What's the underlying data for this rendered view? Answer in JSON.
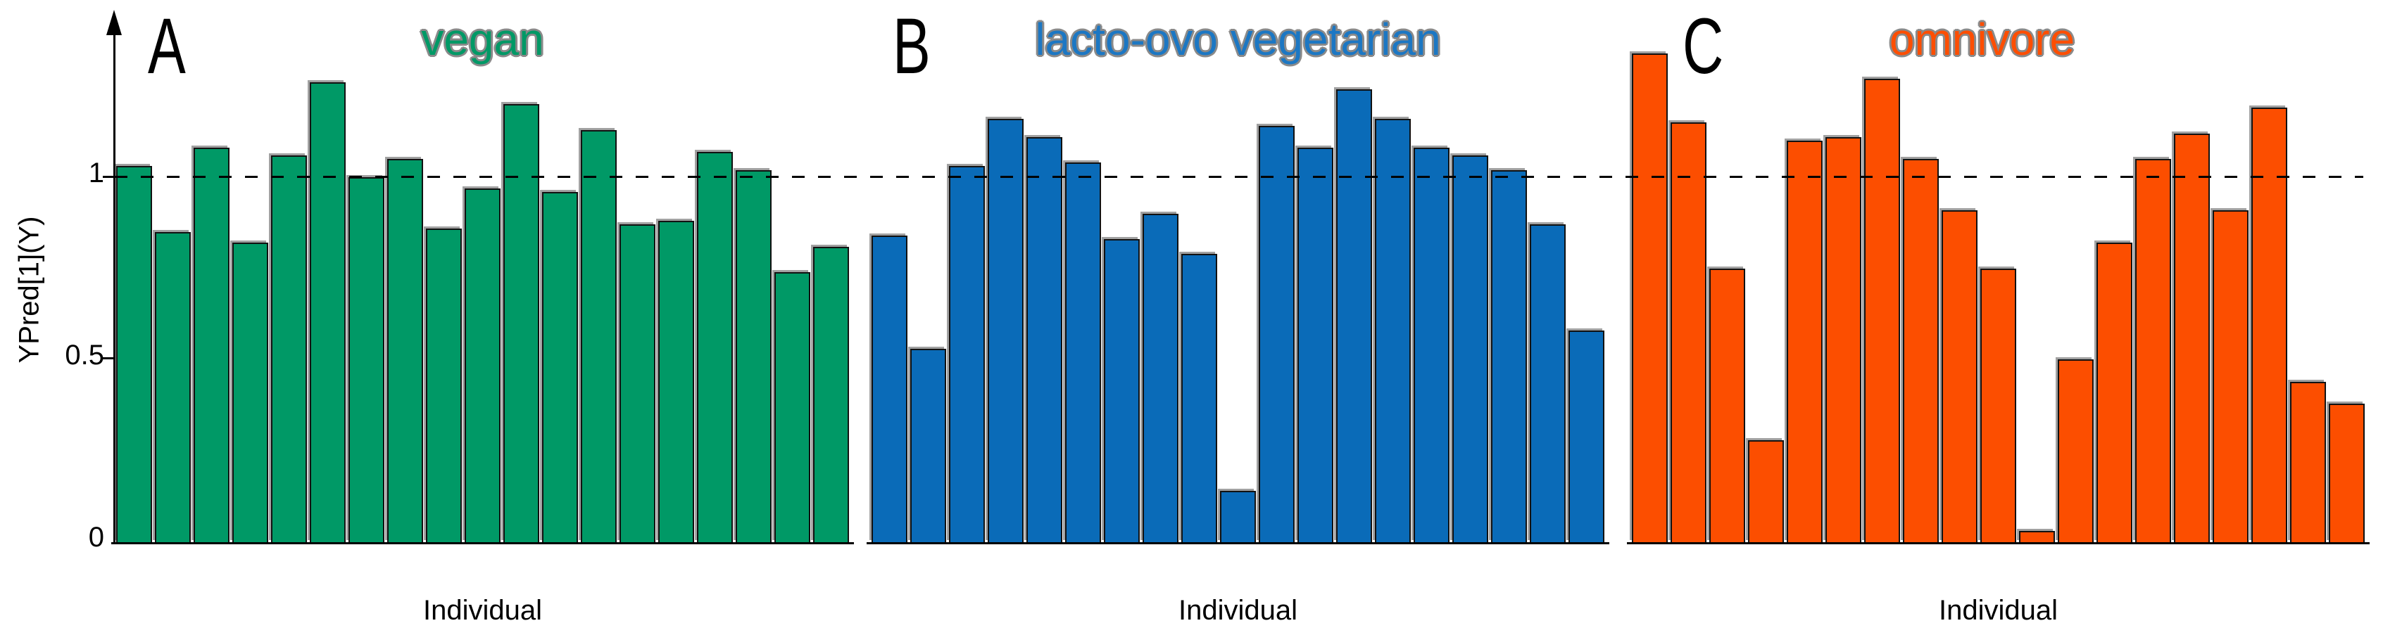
{
  "axis": {
    "ylabel": "YPred[1](Y)",
    "xlabel": "Individual",
    "yticks": [
      {
        "label": "0",
        "value": 0
      },
      {
        "label": "0.5",
        "value": 0.5
      },
      {
        "label": "1",
        "value": 1
      }
    ],
    "reference_line_y": 1.0
  },
  "chart_data": [
    {
      "type": "bar",
      "panel_label": "A",
      "title": "vegan",
      "title_color": "#009966",
      "bar_color": "#009966",
      "xlabel": "Individual",
      "ylabel": "YPred[1](Y)",
      "ylim": [
        0,
        1.4
      ],
      "grid": false,
      "reference_line_y": 1.0,
      "values": [
        1.03,
        0.85,
        1.08,
        0.82,
        1.06,
        1.26,
        1.0,
        1.05,
        0.86,
        0.97,
        1.2,
        0.96,
        1.13,
        0.87,
        0.88,
        1.07,
        1.02,
        0.74,
        0.81
      ]
    },
    {
      "type": "bar",
      "panel_label": "B",
      "title": "lacto-ovo vegetarian",
      "title_color": "#1c77c3",
      "bar_color": "#0a6bb8",
      "xlabel": "Individual",
      "ylabel": "YPred[1](Y)",
      "ylim": [
        0,
        1.4
      ],
      "grid": false,
      "reference_line_y": 1.0,
      "values": [
        0.84,
        0.53,
        1.03,
        1.16,
        1.11,
        1.04,
        0.83,
        0.9,
        0.79,
        0.14,
        1.14,
        1.08,
        1.24,
        1.16,
        1.08,
        1.06,
        1.02,
        0.87,
        0.58
      ]
    },
    {
      "type": "bar",
      "panel_label": "C",
      "title": "omnivore",
      "title_color": "#fd4e03",
      "bar_color": "#fc4e00",
      "xlabel": "Individual",
      "ylabel": "YPred[1](Y)",
      "ylim": [
        0,
        1.4
      ],
      "grid": false,
      "reference_line_y": 1.0,
      "values": [
        1.34,
        1.15,
        0.75,
        0.28,
        1.1,
        1.11,
        1.27,
        1.05,
        0.91,
        0.75,
        0.03,
        0.5,
        0.82,
        1.05,
        1.12,
        0.91,
        1.19,
        0.44,
        0.38
      ]
    }
  ]
}
